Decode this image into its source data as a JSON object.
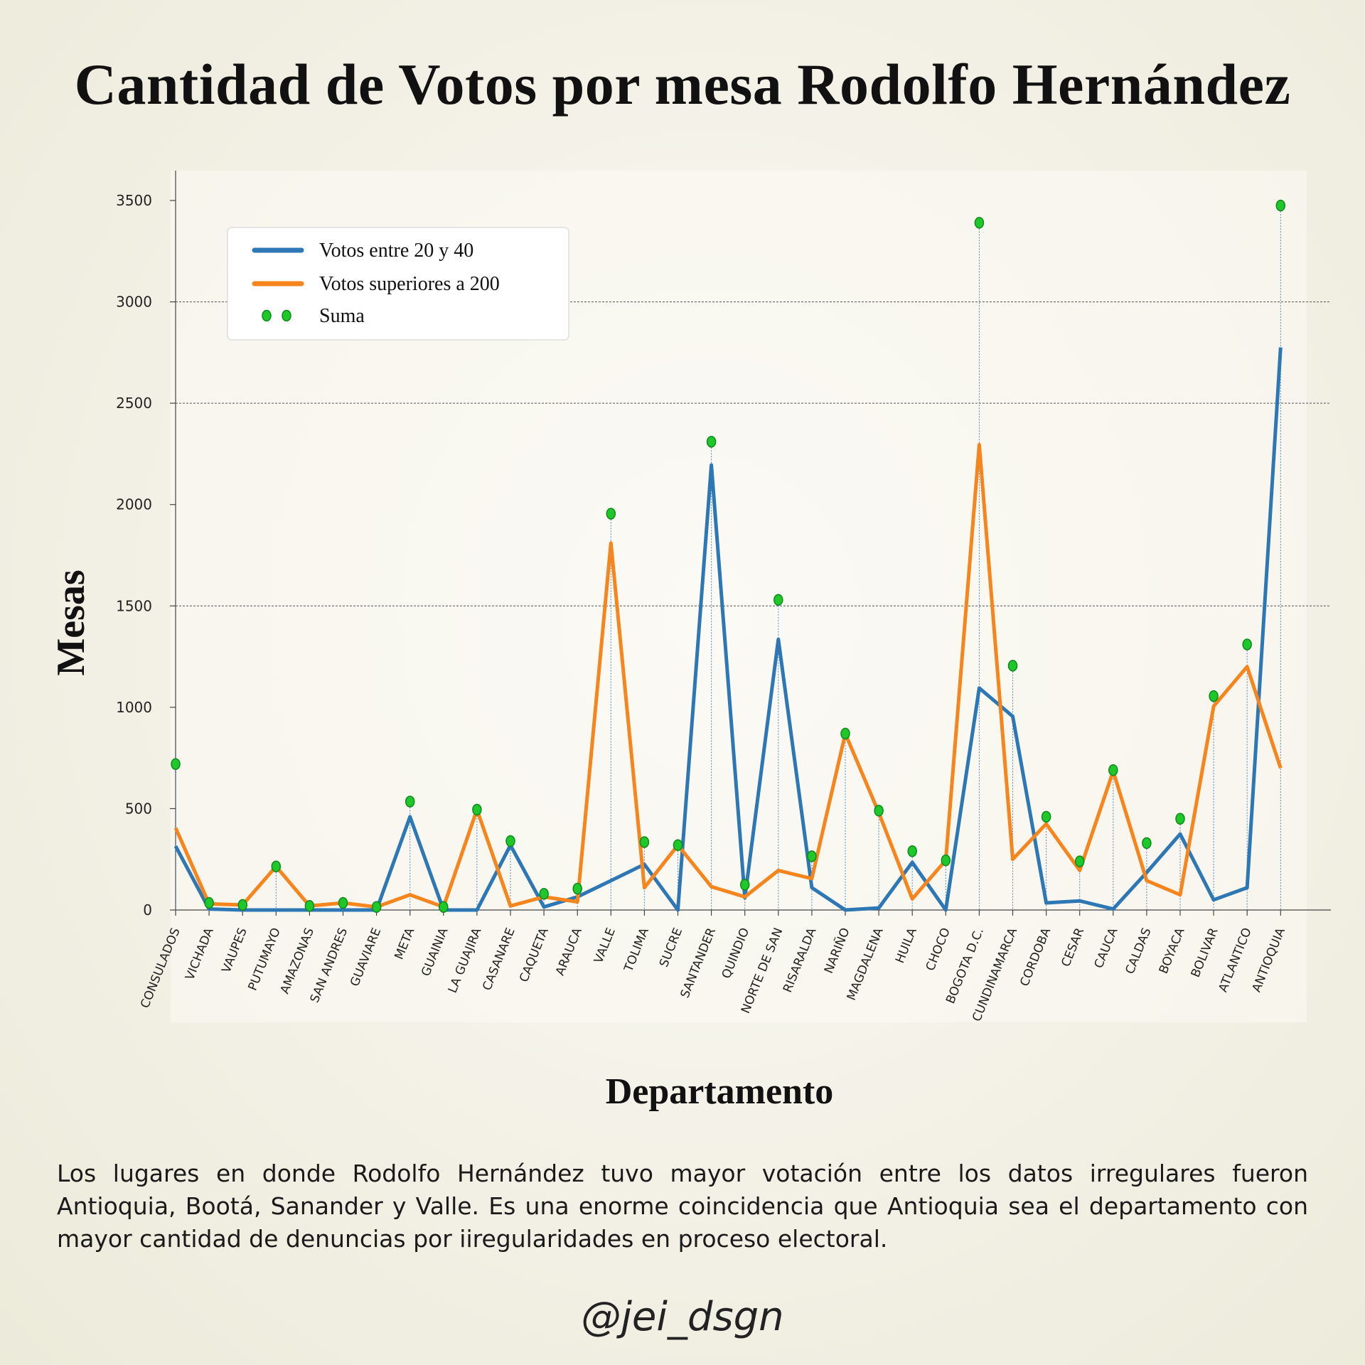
{
  "title": "Cantidad de Votos por mesa Rodolfo Hernández",
  "caption": "Los lugares en donde Rodolfo Hernández tuvo mayor votación entre los datos irregulares fueron Antioquia, Bootá, Sanander y Valle. Es una enorme coincidencia que Antioquia sea el departamento con mayor cantidad de denuncias por iiregularidades en proceso electoral.",
  "signature": "@jei_dsgn",
  "chart_data": {
    "type": "line",
    "xlabel": "Departamento",
    "ylabel": "Mesas",
    "ylim": [
      0,
      3500
    ],
    "yticks": [
      0,
      500,
      1000,
      1500,
      2000,
      2500,
      3000,
      3500
    ],
    "grid": "horizontal dashed at 1500, 2500, 3000",
    "legend_position": "top-left",
    "categories": [
      "CONSULADOS",
      "VICHADA",
      "VAUPES",
      "PUTUMAYO",
      "AMAZONAS",
      "SAN ANDRES",
      "GUAVIARE",
      "META",
      "GUAINIA",
      "LA GUAJIRA",
      "CASANARE",
      "CAQUETA",
      "ARAUCA",
      "VALLE",
      "TOLIMA",
      "SUCRE",
      "SANTANDER",
      "QUINDIO",
      "NORTE DE SAN",
      "RISARALDA",
      "NARIÑO",
      "MAGDALENA",
      "HUILA",
      "CHOCO",
      "BOGOTA D.C.",
      "CUNDINAMARCA",
      "CORDOBA",
      "CESAR",
      "CAUCA",
      "CALDAS",
      "BOYACA",
      "BOLIVAR",
      "ATLANTICO",
      "ANTIOQUIA"
    ],
    "series": [
      {
        "name": "Votos entre 20 y 40",
        "color": "#2c77b4",
        "kind": "line",
        "values": [
          315,
          5,
          0,
          0,
          0,
          0,
          0,
          460,
          0,
          0,
          320,
          15,
          65,
          145,
          225,
          0,
          2195,
          60,
          1335,
          110,
          0,
          10,
          235,
          0,
          1095,
          955,
          35,
          45,
          5,
          185,
          375,
          50,
          110,
          2775
        ]
      },
      {
        "name": "Votos superiores a 200",
        "color": "#f5851c",
        "kind": "line",
        "values": [
          405,
          30,
          25,
          215,
          20,
          35,
          15,
          75,
          15,
          495,
          20,
          65,
          40,
          1810,
          110,
          320,
          115,
          65,
          195,
          155,
          870,
          480,
          55,
          245,
          2295,
          250,
          425,
          195,
          685,
          145,
          75,
          1005,
          1200,
          700
        ]
      },
      {
        "name": "Suma",
        "color": "#1ec82a",
        "kind": "points",
        "values": [
          720,
          35,
          25,
          215,
          20,
          35,
          15,
          535,
          15,
          495,
          340,
          80,
          105,
          1955,
          335,
          320,
          2310,
          125,
          1530,
          265,
          870,
          490,
          290,
          245,
          3390,
          1205,
          460,
          240,
          690,
          330,
          450,
          1055,
          1310,
          3475
        ]
      }
    ]
  }
}
